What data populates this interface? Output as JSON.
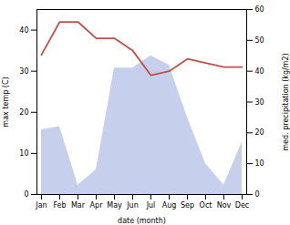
{
  "chart_data": {
    "type": "line",
    "categories": [
      "Jan",
      "Feb",
      "Mar",
      "Apr",
      "May",
      "Jun",
      "Jul",
      "Aug",
      "Sep",
      "Oct",
      "Nov",
      "Dec"
    ],
    "xlabel": "date (month)",
    "ylabel": "max temp (C)",
    "y2label": "med. precipitation (kg/m2)",
    "ylim": [
      0,
      45
    ],
    "yticks": [
      0,
      10,
      20,
      30,
      40
    ],
    "y2lim": [
      0,
      60
    ],
    "y2ticks": [
      0,
      10,
      20,
      30,
      40,
      50,
      60
    ],
    "series": [
      {
        "type": "area",
        "axis": "y2",
        "color": "#c6cfec",
        "values": [
          21,
          22,
          3,
          8,
          41,
          41,
          45,
          42,
          25,
          10,
          3,
          17
        ]
      },
      {
        "type": "line",
        "color": "#c0504d",
        "values": [
          34,
          42,
          42,
          38,
          38,
          35,
          29,
          30,
          33,
          32,
          31,
          31
        ]
      }
    ]
  }
}
